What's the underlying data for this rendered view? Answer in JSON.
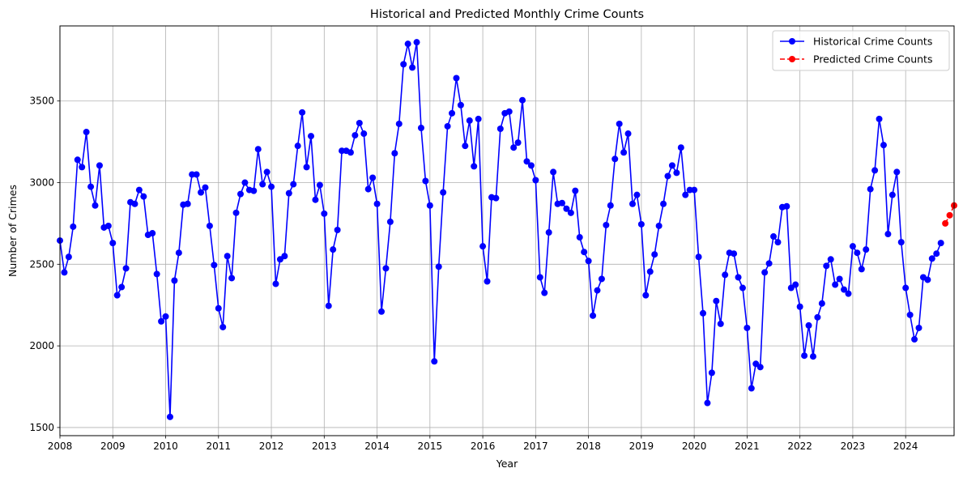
{
  "chart_data": {
    "type": "line",
    "title": "Historical and Predicted Monthly Crime Counts",
    "xlabel": "Year",
    "ylabel": "Number of Crimes",
    "xlim": [
      "2008-01",
      "2024-12"
    ],
    "ylim": [
      1450,
      3960
    ],
    "x_ticks": [
      "2008",
      "2009",
      "2010",
      "2011",
      "2012",
      "2013",
      "2014",
      "2015",
      "2016",
      "2017",
      "2018",
      "2019",
      "2020",
      "2021",
      "2022",
      "2023",
      "2024"
    ],
    "y_ticks": [
      1500,
      2000,
      2500,
      3000,
      3500
    ],
    "grid": true,
    "legend_position": "top-right",
    "series": [
      {
        "name": "Historical Crime Counts",
        "color": "#0000ff",
        "line_style": "solid",
        "marker": "circle",
        "start": "2008-01",
        "values": [
          2645,
          2450,
          2545,
          2730,
          3140,
          3095,
          3310,
          2975,
          2860,
          3105,
          2725,
          2735,
          2630,
          2310,
          2360,
          2475,
          2880,
          2870,
          2955,
          2915,
          2680,
          2690,
          2440,
          2150,
          2180,
          1565,
          2400,
          2570,
          2865,
          2870,
          3050,
          3050,
          2940,
          2970,
          2735,
          2495,
          2230,
          2115,
          2550,
          2415,
          2815,
          2930,
          3000,
          2955,
          2950,
          3205,
          2990,
          3065,
          2975,
          2380,
          2530,
          2550,
          2935,
          2990,
          3225,
          3430,
          3095,
          3285,
          2895,
          2985,
          2810,
          2245,
          2590,
          2710,
          3195,
          3195,
          3185,
          3290,
          3365,
          3300,
          2960,
          3030,
          2870,
          2210,
          2475,
          2760,
          3180,
          3360,
          3725,
          3850,
          3705,
          3860,
          3335,
          3010,
          2860,
          1905,
          2485,
          2940,
          3345,
          3425,
          3640,
          3475,
          3225,
          3380,
          3100,
          3390,
          2610,
          2395,
          2910,
          2905,
          3330,
          3425,
          3435,
          3215,
          3245,
          3505,
          3130,
          3105,
          3015,
          2420,
          2325,
          2695,
          3065,
          2870,
          2875,
          2840,
          2815,
          2950,
          2665,
          2575,
          2520,
          2185,
          2340,
          2410,
          2740,
          2860,
          3145,
          3360,
          3185,
          3300,
          2870,
          2925,
          2745,
          2310,
          2455,
          2560,
          2735,
          2870,
          3040,
          3105,
          3060,
          3215,
          2925,
          2955,
          2955,
          2545,
          2200,
          1650,
          1835,
          2275,
          2135,
          2435,
          2570,
          2565,
          2420,
          2355,
          2110,
          1740,
          1890,
          1870,
          2450,
          2505,
          2670,
          2635,
          2850,
          2855,
          2355,
          2375,
          2240,
          1940,
          2125,
          1935,
          2175,
          2260,
          2490,
          2530,
          2375,
          2410,
          2345,
          2320,
          2610,
          2570,
          2470,
          2590,
          2960,
          3075,
          3390,
          3230,
          2685,
          2925,
          3065,
          2635,
          2355,
          2190,
          2040,
          2110,
          2420,
          2405,
          2535,
          2565,
          2630
        ]
      },
      {
        "name": "Predicted Crime Counts",
        "color": "#ff0000",
        "line_style": "dashed",
        "marker": "circle",
        "start": "2024-10",
        "values": [
          2750,
          2800,
          2860
        ]
      }
    ]
  }
}
